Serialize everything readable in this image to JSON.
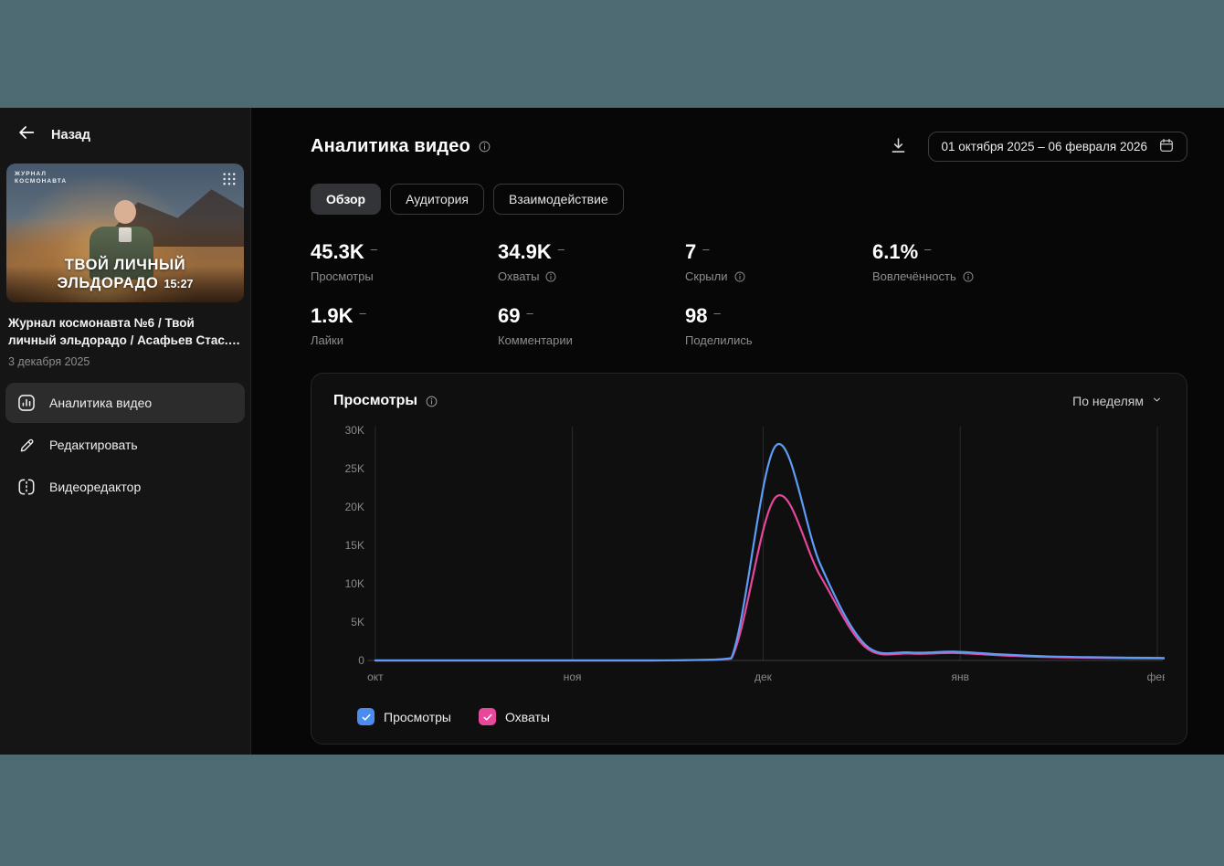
{
  "sidebar": {
    "back_label": "Назад",
    "video": {
      "badge_line1": "ЖУРНАЛ",
      "badge_line2": "КОСМОНАВТА",
      "overlay_title_line1": "ТВОЙ ЛИЧНЫЙ",
      "overlay_title_line2": "ЭЛЬДОРАДО",
      "duration": "15:27",
      "title": "Журнал космонавта №6 / Твой личный эльдорадо / Асафьев Стас.…",
      "published_date": "3 декабря 2025"
    },
    "menu": [
      {
        "label": "Аналитика видео"
      },
      {
        "label": "Редактировать"
      },
      {
        "label": "Видеоредактор"
      }
    ]
  },
  "header": {
    "title": "Аналитика видео",
    "date_range": "01 октября 2025 – 06 февраля 2026"
  },
  "tabs": [
    {
      "label": "Обзор",
      "active": true
    },
    {
      "label": "Аудитория",
      "active": false
    },
    {
      "label": "Взаимодействие",
      "active": false
    }
  ],
  "stats": [
    {
      "value": "45.3K",
      "trend": "–",
      "label": "Просмотры"
    },
    {
      "value": "34.9K",
      "trend": "–",
      "label": "Охваты"
    },
    {
      "value": "7",
      "trend": "–",
      "label": "Скрыли"
    },
    {
      "value": "6.1%",
      "trend": "–",
      "label": "Вовлечённость"
    },
    {
      "value": "1.9K",
      "trend": "–",
      "label": "Лайки"
    },
    {
      "value": "69",
      "trend": "–",
      "label": "Комментарии"
    },
    {
      "value": "98",
      "trend": "–",
      "label": "Поделились"
    }
  ],
  "chart_card": {
    "title": "Просмотры",
    "granularity_label": "По неделям"
  },
  "chart_data": {
    "type": "line",
    "title": "Просмотры",
    "granularity": "По неделям",
    "x_axis": {
      "unit": "days_from_2025-10-01",
      "tick_days": [
        0,
        31,
        61,
        92,
        123
      ],
      "tick_labels": [
        "окт",
        "ноя",
        "дек",
        "янв",
        "фев"
      ]
    },
    "y_axis": {
      "min": 0,
      "max": 30000,
      "ticks": [
        0,
        5000,
        10000,
        15000,
        20000,
        25000,
        30000
      ],
      "tick_labels": [
        "0",
        "5K",
        "10K",
        "15K",
        "20K",
        "25K",
        "30K"
      ]
    },
    "grid": "vertical-month-lines",
    "legend_position": "bottom",
    "series": [
      {
        "name": "Просмотры",
        "color": "#5e9cf7",
        "points": [
          [
            0,
            0
          ],
          [
            7,
            0
          ],
          [
            14,
            0
          ],
          [
            21,
            0
          ],
          [
            28,
            0
          ],
          [
            35,
            0
          ],
          [
            42,
            0
          ],
          [
            49,
            50
          ],
          [
            56,
            300
          ],
          [
            63,
            28000
          ],
          [
            70,
            12500
          ],
          [
            77,
            2100
          ],
          [
            84,
            1050
          ],
          [
            91,
            1150
          ],
          [
            98,
            800
          ],
          [
            105,
            550
          ],
          [
            112,
            430
          ],
          [
            119,
            360
          ],
          [
            126,
            310
          ]
        ]
      },
      {
        "name": "Охваты",
        "color": "#e8479c",
        "points": [
          [
            0,
            0
          ],
          [
            7,
            0
          ],
          [
            14,
            0
          ],
          [
            21,
            0
          ],
          [
            28,
            0
          ],
          [
            35,
            0
          ],
          [
            42,
            0
          ],
          [
            49,
            40
          ],
          [
            56,
            250
          ],
          [
            63,
            21300
          ],
          [
            70,
            11000
          ],
          [
            77,
            1800
          ],
          [
            84,
            900
          ],
          [
            91,
            980
          ],
          [
            98,
            680
          ],
          [
            105,
            460
          ],
          [
            112,
            360
          ],
          [
            119,
            300
          ],
          [
            126,
            260
          ]
        ]
      }
    ]
  },
  "legend": [
    {
      "label": "Просмотры",
      "color": "#4a8cf0",
      "checked": true
    },
    {
      "label": "Охваты",
      "color": "#e8479c",
      "checked": true
    }
  ]
}
